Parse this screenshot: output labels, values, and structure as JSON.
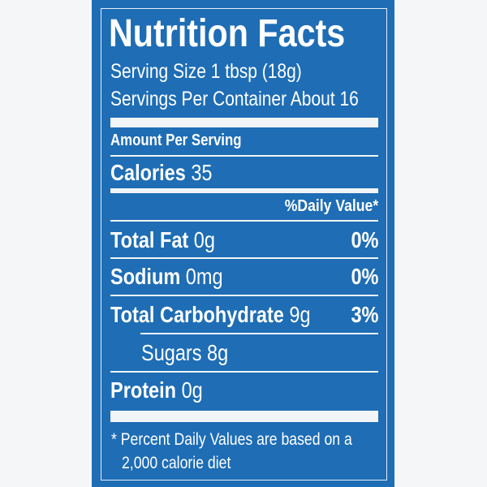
{
  "label": {
    "title": "Nutrition Facts",
    "serving_size": "Serving Size 1 tbsp (18g)",
    "servings_per_container": "Servings Per Container About 16",
    "amount_per_serving": "Amount Per Serving",
    "calories_label": "Calories",
    "calories_value": "35",
    "daily_value_header": "%Daily Value*",
    "nutrients": [
      {
        "name": "Total Fat",
        "amount": "0g",
        "dv": "0%"
      },
      {
        "name": "Sodium",
        "amount": "0mg",
        "dv": "0%"
      },
      {
        "name": "Total Carbohydrate",
        "amount": "9g",
        "dv": "3%"
      },
      {
        "name": "Sugars",
        "amount": "8g",
        "dv": ""
      },
      {
        "name": "Protein",
        "amount": "0g",
        "dv": ""
      }
    ],
    "footnote_line1": "* Percent Daily Values are based on a",
    "footnote_line2": "2,000 calorie diet"
  },
  "colors": {
    "panel": "#1e6db5",
    "text": "#ffffff",
    "background": "#f4f6f8"
  }
}
